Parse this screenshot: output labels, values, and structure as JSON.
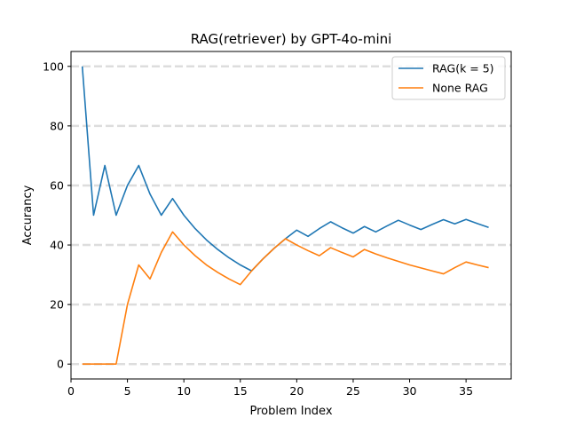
{
  "chart_data": {
    "type": "line",
    "title": "RAG(retriever) by GPT-4o-mini",
    "xlabel": "Problem Index",
    "ylabel": "Accurancy",
    "xlim": [
      0,
      39
    ],
    "ylim": [
      -5,
      105
    ],
    "xticks": [
      0,
      5,
      10,
      15,
      20,
      25,
      30,
      35
    ],
    "yticks": [
      0,
      20,
      40,
      60,
      80,
      100
    ],
    "grid": "horizontal dashed",
    "legend": "top-right",
    "x": [
      1,
      2,
      3,
      4,
      5,
      6,
      7,
      8,
      9,
      10,
      11,
      12,
      13,
      14,
      15,
      16,
      17,
      18,
      19,
      20,
      21,
      22,
      23,
      24,
      25,
      26,
      27,
      28,
      29,
      30,
      31,
      32,
      33,
      34,
      35,
      36,
      37
    ],
    "series": [
      {
        "name": "RAG(k = 5)",
        "color": "#1f77b4",
        "values": [
          100,
          50,
          66.7,
          50,
          60,
          66.7,
          57.1,
          50,
          55.6,
          50,
          45.5,
          41.7,
          38.5,
          35.7,
          33.3,
          31.3,
          35.3,
          38.9,
          42.1,
          45,
          42.9,
          45.5,
          47.8,
          45.8,
          44,
          46.2,
          44.4,
          46.4,
          48.3,
          46.7,
          45.2,
          46.9,
          48.5,
          47.1,
          48.6,
          47.2,
          45.9
        ]
      },
      {
        "name": "None RAG",
        "color": "#ff7f0e",
        "values": [
          0,
          0,
          0,
          0,
          20,
          33.3,
          28.6,
          37.5,
          44.4,
          40,
          36.4,
          33.3,
          30.8,
          28.6,
          26.7,
          31.3,
          35.3,
          38.9,
          42.1,
          40,
          38.1,
          36.4,
          39.1,
          37.5,
          36,
          38.5,
          37,
          35.7,
          34.5,
          33.3,
          32.3,
          31.3,
          30.3,
          32.4,
          34.3,
          33.3,
          32.4
        ]
      }
    ]
  }
}
